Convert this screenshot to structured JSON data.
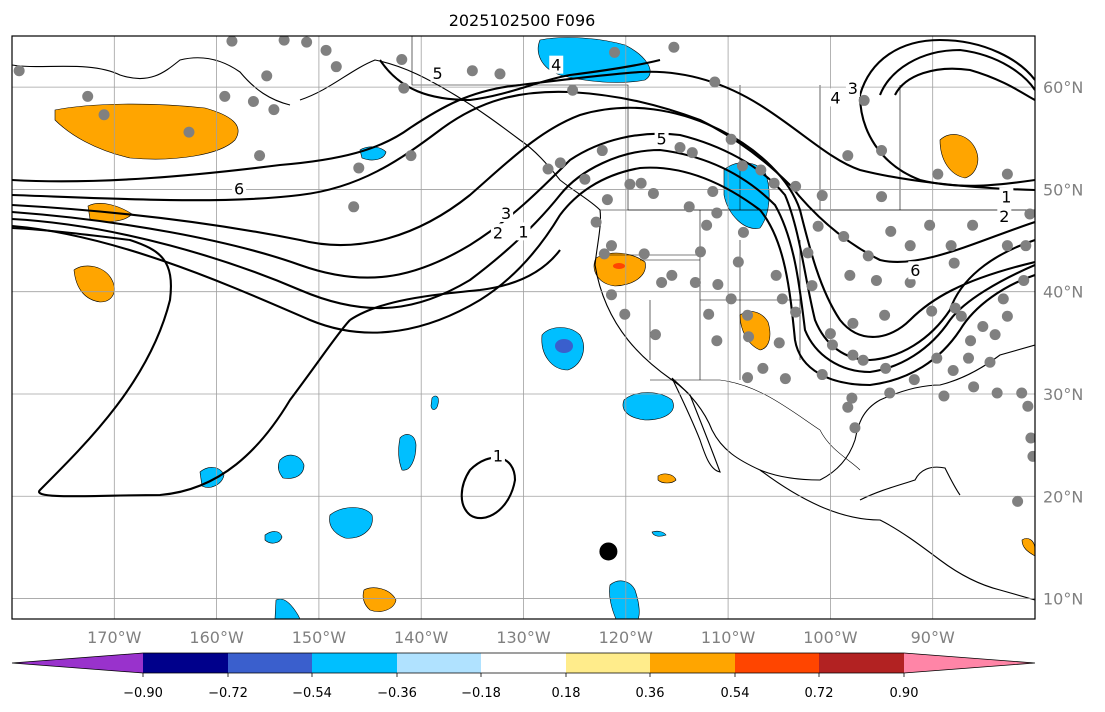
{
  "title": "2025102500 F096",
  "map": {
    "lon_range": [
      -180,
      -80
    ],
    "lat_range": [
      8,
      65
    ],
    "lon_ticks": [
      {
        "lon": -170,
        "label": "170°W"
      },
      {
        "lon": -160,
        "label": "160°W"
      },
      {
        "lon": -150,
        "label": "150°W"
      },
      {
        "lon": -140,
        "label": "140°W"
      },
      {
        "lon": -130,
        "label": "130°W"
      },
      {
        "lon": -120,
        "label": "120°W"
      },
      {
        "lon": -110,
        "label": "110°W"
      },
      {
        "lon": -100,
        "label": "100°W"
      },
      {
        "lon": -90,
        "label": "90°W"
      }
    ],
    "lat_ticks": [
      {
        "lat": 10,
        "label": "10°N"
      },
      {
        "lat": 20,
        "label": "20°N"
      },
      {
        "lat": 30,
        "label": "30°N"
      },
      {
        "lat": 40,
        "label": "40°N"
      },
      {
        "lat": 50,
        "label": "50°N"
      },
      {
        "lat": 60,
        "label": "60°N"
      }
    ],
    "grid": true
  },
  "contour_labels": [
    {
      "text": "5",
      "lon": -138.4,
      "lat": 61.3
    },
    {
      "text": "4",
      "lon": -126.8,
      "lat": 62.1
    },
    {
      "text": "5",
      "lon": -116.5,
      "lat": 54.9
    },
    {
      "text": "4",
      "lon": -99.5,
      "lat": 58.9
    },
    {
      "text": "3",
      "lon": -97.8,
      "lat": 59.8
    },
    {
      "text": "6",
      "lon": -157.8,
      "lat": 50.0
    },
    {
      "text": "1",
      "lon": -82.8,
      "lat": 49.2
    },
    {
      "text": "2",
      "lon": -83.0,
      "lat": 47.3
    },
    {
      "text": "6",
      "lon": -91.7,
      "lat": 42.0
    },
    {
      "text": "3",
      "lon": -131.7,
      "lat": 47.6
    },
    {
      "text": "2",
      "lon": -132.5,
      "lat": 45.7
    },
    {
      "text": "1",
      "lon": -130.0,
      "lat": 45.8
    },
    {
      "text": "1",
      "lon": -132.5,
      "lat": 23.9
    }
  ],
  "storm_marker": {
    "lon": -121.7,
    "lat": 14.6
  },
  "station_points": [
    [
      -158.5,
      64.5
    ],
    [
      -155.1,
      61.1
    ],
    [
      -153.4,
      64.6
    ],
    [
      -151.2,
      64.4
    ],
    [
      -148.3,
      62.0
    ],
    [
      -141.9,
      62.7
    ],
    [
      -135.0,
      61.6
    ],
    [
      -132.3,
      61.3
    ],
    [
      -121.1,
      63.4
    ],
    [
      -115.3,
      63.9
    ],
    [
      -125.2,
      59.7
    ],
    [
      -111.3,
      60.5
    ],
    [
      -179.3,
      61.6
    ],
    [
      -172.6,
      59.1
    ],
    [
      -159.2,
      59.1
    ],
    [
      -156.4,
      58.6
    ],
    [
      -154.4,
      57.8
    ],
    [
      -149.3,
      63.6
    ],
    [
      -141.7,
      59.9
    ],
    [
      -141.0,
      53.3
    ],
    [
      -171.0,
      57.3
    ],
    [
      -162.7,
      55.6
    ],
    [
      -155.8,
      53.3
    ],
    [
      -146.1,
      52.1
    ],
    [
      -146.6,
      48.3
    ],
    [
      -127.6,
      52.0
    ],
    [
      -124.0,
      51.0
    ],
    [
      -121.8,
      49.0
    ],
    [
      -122.9,
      46.8
    ],
    [
      -122.1,
      43.7
    ],
    [
      -118.2,
      43.7
    ],
    [
      -115.5,
      41.6
    ],
    [
      -112.7,
      43.9
    ],
    [
      -109.0,
      42.9
    ],
    [
      -105.3,
      41.6
    ],
    [
      -104.7,
      39.3
    ],
    [
      -101.8,
      40.6
    ],
    [
      -98.1,
      41.6
    ],
    [
      -95.5,
      41.1
    ],
    [
      -92.2,
      40.9
    ],
    [
      -90.1,
      38.1
    ],
    [
      -87.8,
      38.4
    ],
    [
      -86.5,
      33.5
    ],
    [
      -86.0,
      30.7
    ],
    [
      -83.7,
      30.1
    ],
    [
      -81.3,
      30.1
    ],
    [
      -80.7,
      28.8
    ],
    [
      -80.4,
      25.7
    ],
    [
      -80.2,
      23.9
    ],
    [
      -81.7,
      19.5
    ],
    [
      -87.2,
      37.6
    ],
    [
      -85.1,
      36.6
    ],
    [
      -82.7,
      37.6
    ],
    [
      -83.1,
      39.3
    ],
    [
      -81.1,
      41.1
    ],
    [
      -80.9,
      44.5
    ],
    [
      -82.7,
      44.5
    ],
    [
      -80.5,
      47.6
    ],
    [
      -82.7,
      51.5
    ],
    [
      -89.5,
      51.5
    ],
    [
      -95.0,
      53.8
    ],
    [
      -96.7,
      58.7
    ],
    [
      -98.3,
      53.3
    ],
    [
      -95.0,
      49.3
    ],
    [
      -94.1,
      45.9
    ],
    [
      -96.3,
      43.5
    ],
    [
      -98.7,
      45.4
    ],
    [
      -100.8,
      49.4
    ],
    [
      -103.4,
      50.3
    ],
    [
      -105.5,
      50.6
    ],
    [
      -106.8,
      51.9
    ],
    [
      -108.6,
      52.3
    ],
    [
      -109.7,
      54.9
    ],
    [
      -113.5,
      53.6
    ],
    [
      -114.7,
      54.1
    ],
    [
      -113.8,
      48.3
    ],
    [
      -111.5,
      49.8
    ],
    [
      -117.3,
      49.6
    ],
    [
      -118.5,
      50.6
    ],
    [
      -126.4,
      52.6
    ],
    [
      -122.3,
      53.8
    ],
    [
      -119.6,
      50.5
    ],
    [
      -121.4,
      44.5
    ],
    [
      -121.4,
      39.7
    ],
    [
      -120.1,
      37.8
    ],
    [
      -117.1,
      35.8
    ],
    [
      -116.5,
      40.9
    ],
    [
      -113.2,
      40.9
    ],
    [
      -111.9,
      37.8
    ],
    [
      -111.1,
      35.2
    ],
    [
      -109.7,
      39.3
    ],
    [
      -108.0,
      35.6
    ],
    [
      -106.6,
      32.5
    ],
    [
      -108.1,
      31.6
    ],
    [
      -104.4,
      31.5
    ],
    [
      -103.4,
      38.0
    ],
    [
      -100.8,
      31.9
    ],
    [
      -99.8,
      34.8
    ],
    [
      -100.0,
      35.9
    ],
    [
      -97.8,
      36.9
    ],
    [
      -97.8,
      33.8
    ],
    [
      -97.9,
      29.6
    ],
    [
      -97.6,
      26.7
    ],
    [
      -96.8,
      33.3
    ],
    [
      -94.6,
      32.5
    ],
    [
      -94.2,
      30.1
    ],
    [
      -91.8,
      31.4
    ],
    [
      -89.6,
      33.5
    ],
    [
      -88.9,
      29.8
    ],
    [
      -86.3,
      35.2
    ],
    [
      -94.7,
      37.7
    ],
    [
      -92.2,
      44.5
    ],
    [
      -90.3,
      46.5
    ],
    [
      -87.9,
      42.8
    ],
    [
      -88.2,
      44.5
    ],
    [
      -86.1,
      46.5
    ],
    [
      -98.3,
      28.7
    ],
    [
      -88.0,
      32.3
    ],
    [
      -84.4,
      33.1
    ],
    [
      -83.9,
      35.8
    ],
    [
      -108.1,
      37.7
    ],
    [
      -111.0,
      40.7
    ],
    [
      -111.1,
      47.7
    ],
    [
      -108.5,
      45.8
    ],
    [
      -112.1,
      46.5
    ],
    [
      -105.0,
      35.0
    ],
    [
      -102.2,
      43.8
    ],
    [
      -101.2,
      46.4
    ]
  ],
  "fill_levels": [
    {
      "key": "lt_-0.90",
      "color": "#9932cc"
    },
    {
      "key": "-0.90_-0.72",
      "color": "#00008b"
    },
    {
      "key": "-0.72_-0.54",
      "color": "#3a5fcd"
    },
    {
      "key": "-0.54_-0.36",
      "color": "#00bfff"
    },
    {
      "key": "-0.36_-0.18",
      "color": "#b0e2ff"
    },
    {
      "key": "-0.18_0.18",
      "color": "#ffffff"
    },
    {
      "key": "0.18_0.36",
      "color": "#ffec8b"
    },
    {
      "key": "0.36_0.54",
      "color": "#ffa500"
    },
    {
      "key": "0.54_0.72",
      "color": "#ff4500"
    },
    {
      "key": "0.72_0.90",
      "color": "#b22222"
    },
    {
      "key": "gt_0.90",
      "color": "#ff85a7"
    }
  ],
  "colorbar": {
    "tick_values": [
      -0.9,
      -0.72,
      -0.54,
      -0.36,
      -0.18,
      0.18,
      0.36,
      0.54,
      0.72,
      0.9
    ],
    "tick_labels": [
      "−0.90",
      "−0.72",
      "−0.54",
      "−0.36",
      "−0.18",
      "0.18",
      "0.36",
      "0.54",
      "0.72",
      "0.90"
    ],
    "extend": "both"
  }
}
